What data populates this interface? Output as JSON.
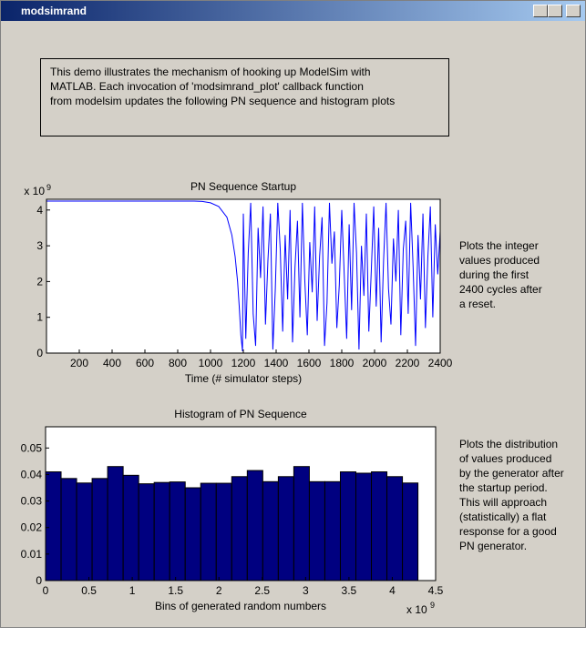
{
  "window": {
    "title": "modsimrand"
  },
  "description": [
    "This demo illustrates the mechanism of hooking up ModelSim with",
    "MATLAB. Each invocation of 'modsimrand_plot' callback function",
    "from modelsim updates the following PN sequence and histogram plots"
  ],
  "notes": [
    [
      "Plots the integer",
      "values produced",
      "during the first",
      "2400 cycles after",
      "a reset."
    ],
    [
      "Plots the distribution",
      "of values produced",
      "by the generator after",
      "the startup period.",
      "This will approach",
      "(statistically) a flat",
      "response for a good",
      "PN generator."
    ]
  ],
  "chart_data": [
    {
      "type": "line",
      "title": "PN Sequence Startup",
      "x_label": "Time (# simulator steps)",
      "y_exponent_base": "x 10",
      "y_exponent": "9",
      "color": "#0000ff",
      "x": [
        1,
        100,
        200,
        300,
        400,
        500,
        600,
        700,
        800,
        900,
        950,
        1000,
        1050,
        1100,
        1130,
        1150,
        1165,
        1175,
        1185,
        1195,
        1200,
        1215,
        1230,
        1245,
        1260,
        1275,
        1290,
        1305,
        1320,
        1335,
        1350,
        1365,
        1380,
        1395,
        1410,
        1425,
        1440,
        1455,
        1470,
        1485,
        1500,
        1515,
        1530,
        1545,
        1560,
        1575,
        1590,
        1605,
        1620,
        1635,
        1650,
        1665,
        1680,
        1695,
        1710,
        1725,
        1740,
        1755,
        1770,
        1785,
        1800,
        1815,
        1830,
        1845,
        1860,
        1875,
        1890,
        1905,
        1920,
        1935,
        1950,
        1965,
        1980,
        1995,
        2010,
        2025,
        2040,
        2055,
        2070,
        2085,
        2100,
        2115,
        2130,
        2145,
        2160,
        2175,
        2190,
        2205,
        2220,
        2235,
        2250,
        2265,
        2280,
        2295,
        2310,
        2325,
        2340,
        2355,
        2370,
        2385,
        2400
      ],
      "values": [
        4.25,
        4.25,
        4.25,
        4.25,
        4.25,
        4.25,
        4.25,
        4.25,
        4.25,
        4.25,
        4.24,
        4.2,
        4.1,
        3.8,
        3.3,
        2.7,
        2.0,
        1.3,
        0.5,
        0.05,
        3.9,
        0.4,
        2.8,
        4.2,
        1.1,
        0.2,
        3.5,
        2.1,
        4.1,
        0.8,
        2.6,
        3.9,
        0.1,
        1.8,
        4.2,
        2.9,
        0.6,
        3.3,
        1.5,
        4.0,
        0.3,
        2.4,
        3.7,
        1.0,
        4.2,
        2.0,
        0.5,
        3.1,
        1.7,
        4.1,
        0.9,
        2.7,
        3.8,
        0.2,
        1.4,
        4.2,
        2.5,
        3.4,
        0.7,
        1.9,
        4.0,
        2.2,
        0.4,
        3.6,
        1.2,
        4.2,
        2.8,
        0.1,
        3.0,
        1.6,
        3.9,
        0.6,
        2.3,
        4.1,
        1.3,
        3.5,
        0.3,
        2.6,
        4.2,
        1.8,
        0.8,
        3.2,
        2.0,
        4.0,
        0.5,
        2.9,
        3.7,
        1.1,
        4.2,
        2.4,
        0.2,
        3.3,
        1.5,
        3.9,
        0.7,
        2.7,
        4.1,
        1.0,
        3.6,
        2.2,
        3.4
      ],
      "xlim": [
        0,
        2400
      ],
      "xticks": [
        200,
        400,
        600,
        800,
        1000,
        1200,
        1400,
        1600,
        1800,
        2000,
        2200,
        2400
      ],
      "ylim": [
        0,
        4.3
      ],
      "yticks": [
        0,
        1,
        2,
        3,
        4
      ]
    },
    {
      "type": "histogram",
      "title": "Histogram of PN Sequence",
      "x_label": "Bins of generated random numbers",
      "x_exponent_base": "x 10",
      "x_exponent": "9",
      "color": "#000080",
      "bins": [
        0,
        0.179,
        0.358,
        0.537,
        0.716,
        0.895,
        1.074,
        1.253,
        1.432,
        1.611,
        1.79,
        1.969,
        2.148,
        2.327,
        2.506,
        2.685,
        2.864,
        3.043,
        3.222,
        3.401,
        3.58,
        3.759,
        3.938,
        4.117,
        4.296
      ],
      "values": [
        0.041,
        0.0385,
        0.0368,
        0.0385,
        0.043,
        0.0397,
        0.0365,
        0.037,
        0.0372,
        0.035,
        0.0367,
        0.0367,
        0.0392,
        0.0415,
        0.0373,
        0.0392,
        0.043,
        0.0373,
        0.0373,
        0.041,
        0.0405,
        0.041,
        0.0392,
        0.0368
      ],
      "xlim": [
        0,
        4.5
      ],
      "xticks": [
        0,
        0.5,
        1,
        1.5,
        2,
        2.5,
        3,
        3.5,
        4,
        4.5
      ],
      "ylim": [
        0,
        0.058
      ],
      "yticks": [
        0,
        0.01,
        0.02,
        0.03,
        0.04,
        0.05
      ]
    }
  ]
}
